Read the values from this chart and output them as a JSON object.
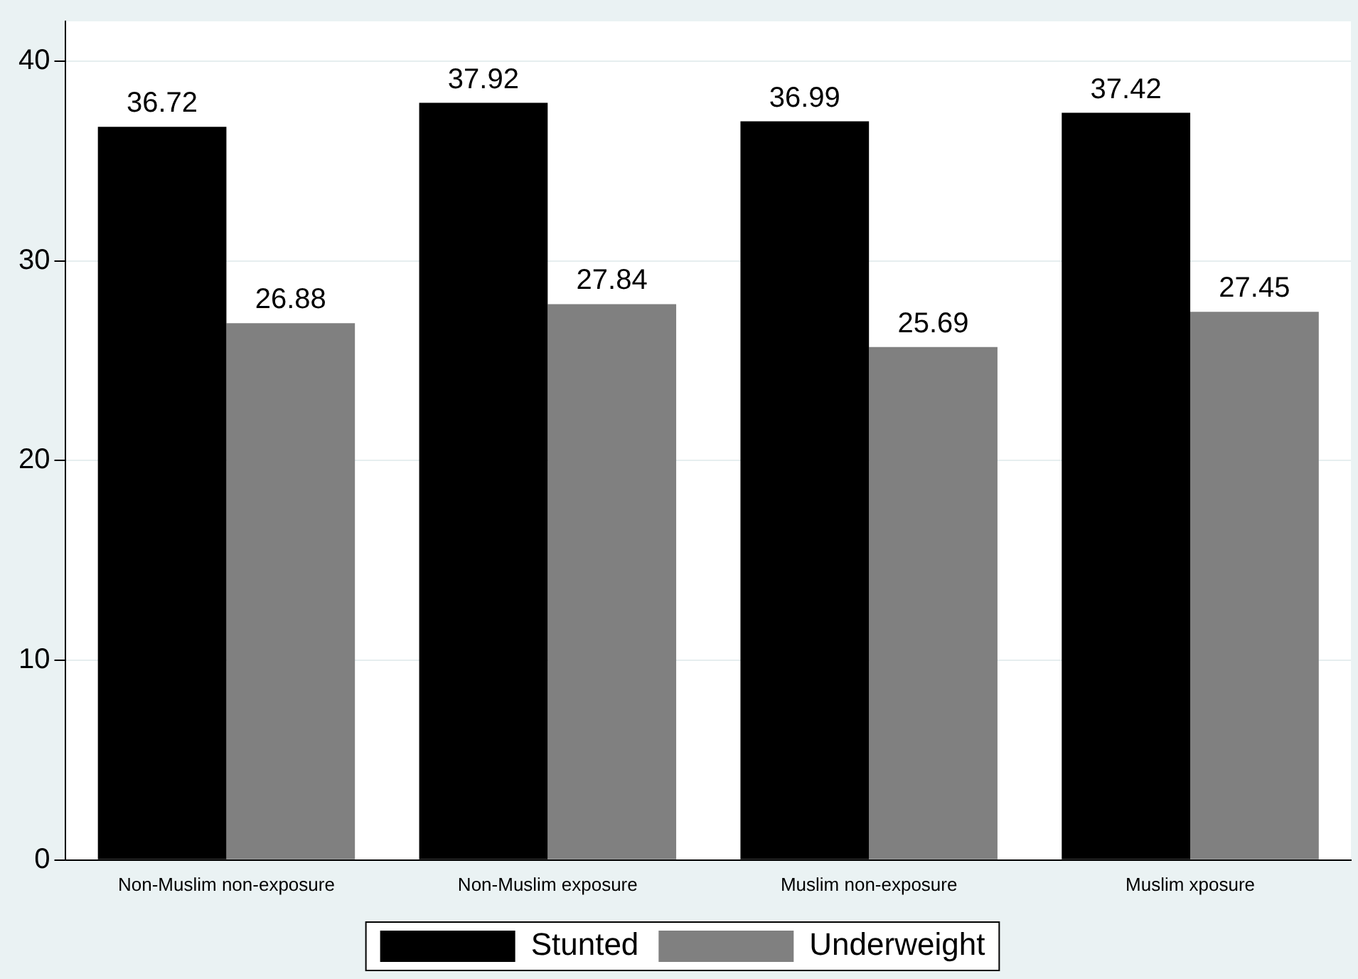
{
  "chart_data": {
    "type": "bar",
    "categories": [
      "Non-Muslim non-exposure",
      "Non-Muslim exposure",
      "Muslim non-exposure",
      "Muslim xposure"
    ],
    "series": [
      {
        "name": "Stunted",
        "color": "#000000",
        "values": [
          36.72,
          37.92,
          36.99,
          37.42
        ]
      },
      {
        "name": "Underweight",
        "color": "#808080",
        "values": [
          26.88,
          27.84,
          25.69,
          27.45
        ]
      }
    ],
    "ylim": [
      0,
      42
    ],
    "yticks": [
      0,
      10,
      20,
      30,
      40
    ],
    "grid": "y",
    "legend": "bottom",
    "data_labels": true
  }
}
